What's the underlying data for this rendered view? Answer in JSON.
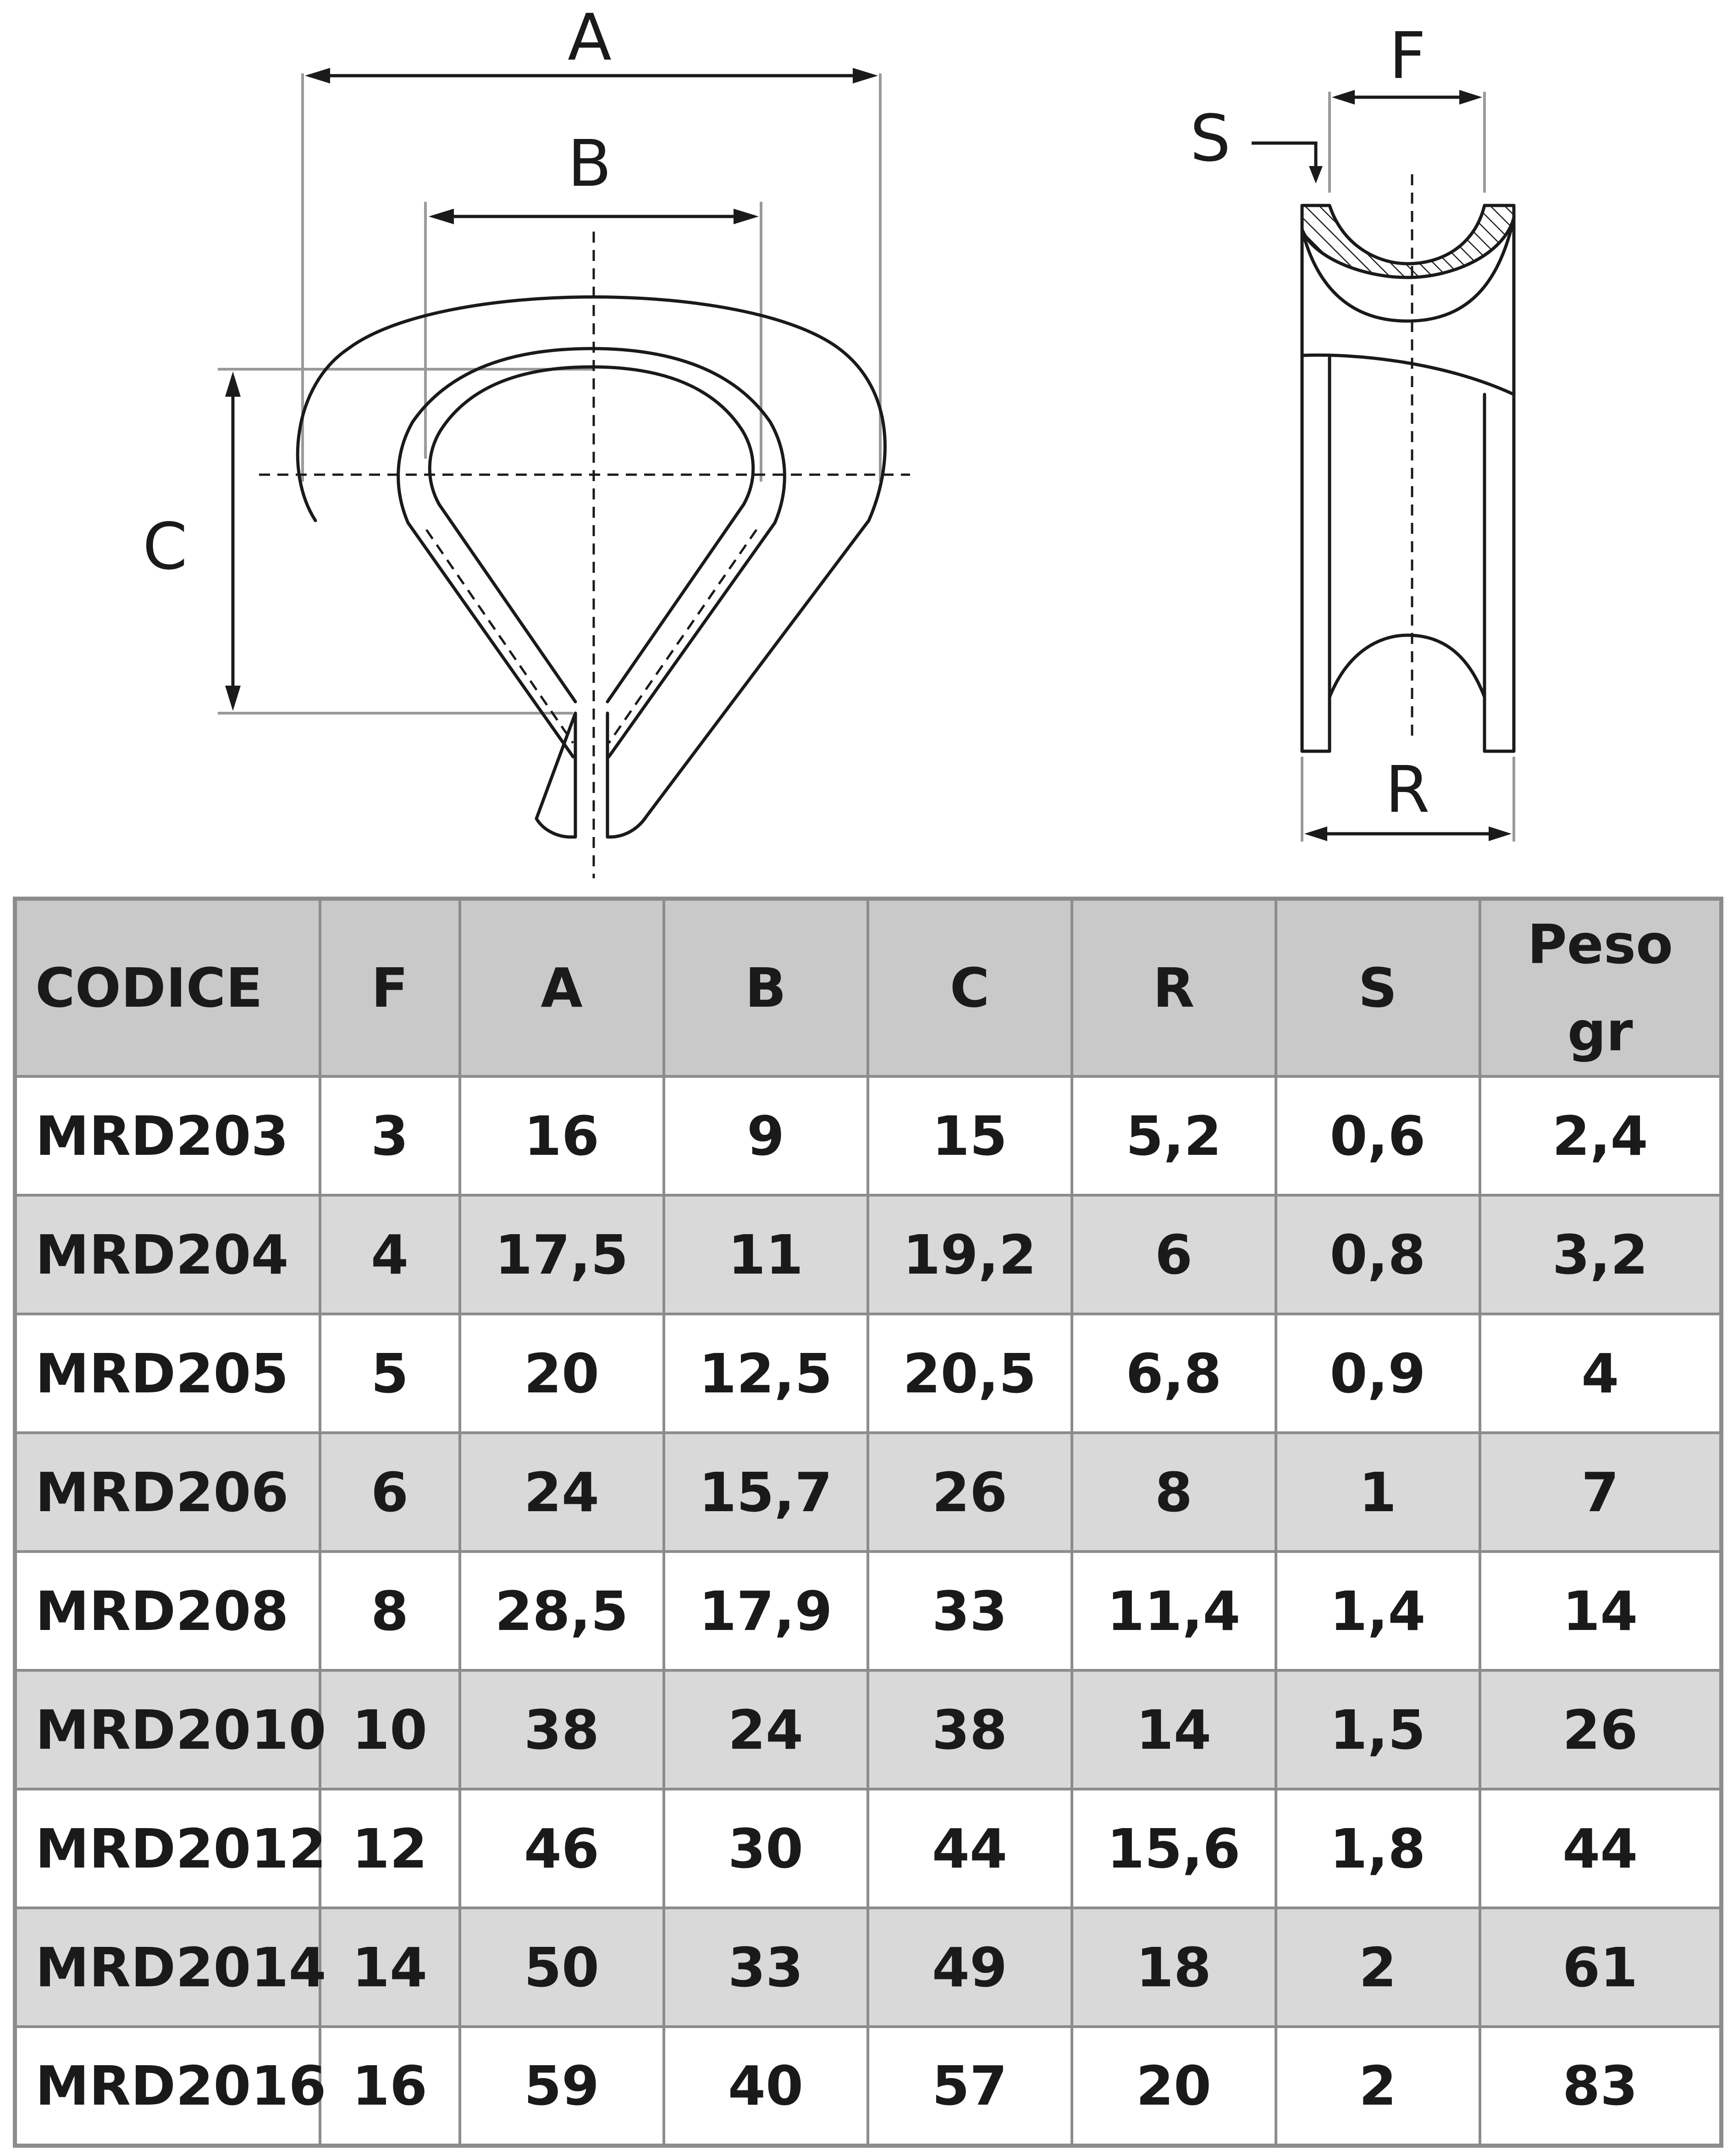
{
  "drawing": {
    "labels": {
      "A": "A",
      "B": "B",
      "C": "C",
      "F": "F",
      "S": "S",
      "R": "R"
    }
  },
  "table": {
    "headers": {
      "codice": "CODICE",
      "f": "F",
      "a": "A",
      "b": "B",
      "c": "C",
      "r": "R",
      "s": "S",
      "peso_line1": "Peso",
      "peso_line2": "gr"
    },
    "rows": [
      [
        "MRD203",
        "3",
        "16",
        "9",
        "15",
        "5,2",
        "0,6",
        "2,4"
      ],
      [
        "MRD204",
        "4",
        "17,5",
        "11",
        "19,2",
        "6",
        "0,8",
        "3,2"
      ],
      [
        "MRD205",
        "5",
        "20",
        "12,5",
        "20,5",
        "6,8",
        "0,9",
        "4"
      ],
      [
        "MRD206",
        "6",
        "24",
        "15,7",
        "26",
        "8",
        "1",
        "7"
      ],
      [
        "MRD208",
        "8",
        "28,5",
        "17,9",
        "33",
        "11,4",
        "1,4",
        "14"
      ],
      [
        "MRD2010",
        "10",
        "38",
        "24",
        "38",
        "14",
        "1,5",
        "26"
      ],
      [
        "MRD2012",
        "12",
        "46",
        "30",
        "44",
        "15,6",
        "1,8",
        "44"
      ],
      [
        "MRD2014",
        "14",
        "50",
        "33",
        "49",
        "18",
        "2",
        "61"
      ],
      [
        "MRD2016",
        "16",
        "59",
        "40",
        "57",
        "20",
        "2",
        "83"
      ]
    ]
  }
}
